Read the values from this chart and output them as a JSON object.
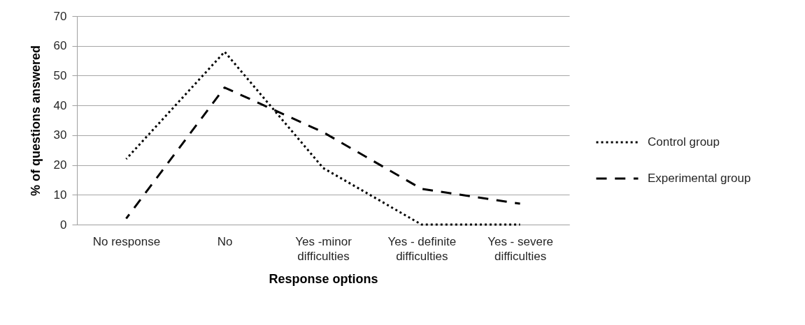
{
  "chart_data": {
    "type": "line",
    "xlabel": "Response options",
    "ylabel": "% of questions answered",
    "categories": [
      "No response",
      "No",
      "Yes -minor difficulties",
      "Yes - definite difficulties",
      "Yes - severe difficulties"
    ],
    "series": [
      {
        "name": "Control group",
        "color": "#000000",
        "line_style": "dotted",
        "values": [
          22,
          58,
          19,
          0,
          0
        ]
      },
      {
        "name": "Experimental group",
        "color": "#000000",
        "line_style": "dashed",
        "values": [
          2,
          46,
          31,
          12,
          7
        ]
      }
    ],
    "ylim": [
      0,
      70
    ],
    "yticks": [
      0,
      10,
      20,
      30,
      40,
      50,
      60,
      70
    ],
    "grid": "y",
    "legend": "right"
  }
}
